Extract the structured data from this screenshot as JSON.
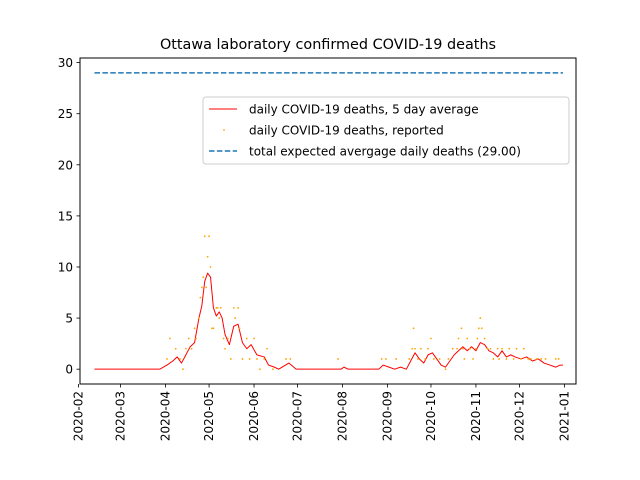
{
  "chart_data": {
    "type": "line",
    "title": "Ottawa laboratory confirmed COVID-19 deaths",
    "xlabel": "",
    "ylabel": "",
    "xlim": [
      "2020-02-02",
      "2021-01-09"
    ],
    "ylim": [
      -1.45,
      30.45
    ],
    "x_ticks": [
      "2020-02",
      "2020-03",
      "2020-04",
      "2020-05",
      "2020-06",
      "2020-07",
      "2020-08",
      "2020-09",
      "2020-10",
      "2020-11",
      "2020-12",
      "2021-01"
    ],
    "y_ticks": [
      0,
      5,
      10,
      15,
      20,
      25,
      30
    ],
    "grid": false,
    "legend_position": "upper-right",
    "series": [
      {
        "name": "daily COVID-19 deaths, 5 day average",
        "style": "line",
        "color": "#ff0000",
        "points": [
          [
            "2020-02-12",
            0
          ],
          [
            "2020-03-28",
            0
          ],
          [
            "2020-04-02",
            0.4
          ],
          [
            "2020-04-06",
            0.8
          ],
          [
            "2020-04-09",
            1.2
          ],
          [
            "2020-04-12",
            0.6
          ],
          [
            "2020-04-15",
            1.4
          ],
          [
            "2020-04-18",
            2.2
          ],
          [
            "2020-04-21",
            2.6
          ],
          [
            "2020-04-24",
            5.0
          ],
          [
            "2020-04-26",
            6.2
          ],
          [
            "2020-04-28",
            8.6
          ],
          [
            "2020-04-30",
            9.4
          ],
          [
            "2020-05-02",
            9.0
          ],
          [
            "2020-05-04",
            6.0
          ],
          [
            "2020-05-06",
            5.2
          ],
          [
            "2020-05-08",
            5.6
          ],
          [
            "2020-05-10",
            5.0
          ],
          [
            "2020-05-12",
            3.4
          ],
          [
            "2020-05-15",
            2.4
          ],
          [
            "2020-05-18",
            4.2
          ],
          [
            "2020-05-21",
            4.4
          ],
          [
            "2020-05-24",
            2.6
          ],
          [
            "2020-05-27",
            2.0
          ],
          [
            "2020-05-30",
            2.4
          ],
          [
            "2020-06-03",
            1.4
          ],
          [
            "2020-06-08",
            1.2
          ],
          [
            "2020-06-11",
            0.4
          ],
          [
            "2020-06-15",
            0.2
          ],
          [
            "2020-06-18",
            0
          ],
          [
            "2020-06-25",
            0.6
          ],
          [
            "2020-06-30",
            0
          ],
          [
            "2020-07-31",
            0
          ],
          [
            "2020-08-02",
            0.2
          ],
          [
            "2020-08-05",
            0
          ],
          [
            "2020-08-26",
            0
          ],
          [
            "2020-08-29",
            0.4
          ],
          [
            "2020-09-02",
            0.2
          ],
          [
            "2020-09-06",
            0
          ],
          [
            "2020-09-10",
            0.2
          ],
          [
            "2020-09-14",
            0
          ],
          [
            "2020-09-17",
            0.8
          ],
          [
            "2020-09-20",
            1.6
          ],
          [
            "2020-09-23",
            1.0
          ],
          [
            "2020-09-26",
            0.6
          ],
          [
            "2020-09-29",
            1.4
          ],
          [
            "2020-10-02",
            1.6
          ],
          [
            "2020-10-05",
            1.0
          ],
          [
            "2020-10-08",
            0.4
          ],
          [
            "2020-10-11",
            0.2
          ],
          [
            "2020-10-14",
            0.8
          ],
          [
            "2020-10-17",
            1.4
          ],
          [
            "2020-10-20",
            1.8
          ],
          [
            "2020-10-23",
            2.2
          ],
          [
            "2020-10-26",
            1.8
          ],
          [
            "2020-10-29",
            2.2
          ],
          [
            "2020-11-01",
            1.8
          ],
          [
            "2020-11-04",
            2.6
          ],
          [
            "2020-11-07",
            2.4
          ],
          [
            "2020-11-10",
            1.8
          ],
          [
            "2020-11-13",
            1.6
          ],
          [
            "2020-11-16",
            1.2
          ],
          [
            "2020-11-19",
            1.8
          ],
          [
            "2020-11-22",
            1.2
          ],
          [
            "2020-11-25",
            1.4
          ],
          [
            "2020-11-28",
            1.2
          ],
          [
            "2020-12-02",
            1.0
          ],
          [
            "2020-12-06",
            1.2
          ],
          [
            "2020-12-10",
            0.8
          ],
          [
            "2020-12-14",
            1.0
          ],
          [
            "2020-12-18",
            0.6
          ],
          [
            "2020-12-22",
            0.4
          ],
          [
            "2020-12-26",
            0.2
          ],
          [
            "2020-12-29",
            0.4
          ],
          [
            "2020-12-31",
            0.4
          ]
        ]
      },
      {
        "name": "daily COVID-19 deaths, reported",
        "style": "points",
        "color": "#ffa500",
        "points": [
          [
            "2020-04-02",
            1
          ],
          [
            "2020-04-04",
            3
          ],
          [
            "2020-04-08",
            2
          ],
          [
            "2020-04-11",
            1
          ],
          [
            "2020-04-13",
            0
          ],
          [
            "2020-04-15",
            2
          ],
          [
            "2020-04-17",
            3
          ],
          [
            "2020-04-19",
            2
          ],
          [
            "2020-04-21",
            4
          ],
          [
            "2020-04-22",
            3
          ],
          [
            "2020-04-24",
            5
          ],
          [
            "2020-04-25",
            7
          ],
          [
            "2020-04-26",
            8
          ],
          [
            "2020-04-27",
            9
          ],
          [
            "2020-04-28",
            13
          ],
          [
            "2020-04-29",
            8
          ],
          [
            "2020-04-30",
            11
          ],
          [
            "2020-05-01",
            13
          ],
          [
            "2020-05-02",
            10
          ],
          [
            "2020-05-03",
            4
          ],
          [
            "2020-05-04",
            4
          ],
          [
            "2020-05-06",
            6
          ],
          [
            "2020-05-07",
            6
          ],
          [
            "2020-05-08",
            5
          ],
          [
            "2020-05-09",
            6
          ],
          [
            "2020-05-11",
            3
          ],
          [
            "2020-05-12",
            2
          ],
          [
            "2020-05-14",
            3
          ],
          [
            "2020-05-16",
            1
          ],
          [
            "2020-05-18",
            6
          ],
          [
            "2020-05-19",
            5
          ],
          [
            "2020-05-21",
            6
          ],
          [
            "2020-05-22",
            4
          ],
          [
            "2020-05-24",
            1
          ],
          [
            "2020-05-27",
            3
          ],
          [
            "2020-05-29",
            1
          ],
          [
            "2020-06-01",
            3
          ],
          [
            "2020-06-03",
            1
          ],
          [
            "2020-06-05",
            0
          ],
          [
            "2020-06-08",
            1
          ],
          [
            "2020-06-10",
            2
          ],
          [
            "2020-06-14",
            0
          ],
          [
            "2020-06-23",
            1
          ],
          [
            "2020-06-26",
            1
          ],
          [
            "2020-07-29",
            1
          ],
          [
            "2020-08-28",
            1
          ],
          [
            "2020-08-31",
            1
          ],
          [
            "2020-09-07",
            1
          ],
          [
            "2020-09-16",
            1
          ],
          [
            "2020-09-18",
            2
          ],
          [
            "2020-09-19",
            4
          ],
          [
            "2020-09-20",
            2
          ],
          [
            "2020-09-22",
            1
          ],
          [
            "2020-09-24",
            2
          ],
          [
            "2020-09-27",
            1
          ],
          [
            "2020-09-29",
            2
          ],
          [
            "2020-10-01",
            3
          ],
          [
            "2020-10-03",
            1
          ],
          [
            "2020-10-07",
            1
          ],
          [
            "2020-10-11",
            0
          ],
          [
            "2020-10-13",
            1
          ],
          [
            "2020-10-16",
            2
          ],
          [
            "2020-10-19",
            2
          ],
          [
            "2020-10-20",
            3
          ],
          [
            "2020-10-22",
            4
          ],
          [
            "2020-10-23",
            2
          ],
          [
            "2020-10-24",
            1
          ],
          [
            "2020-10-26",
            3
          ],
          [
            "2020-10-28",
            2
          ],
          [
            "2020-10-30",
            1
          ],
          [
            "2020-11-01",
            2
          ],
          [
            "2020-11-02",
            3
          ],
          [
            "2020-11-03",
            4
          ],
          [
            "2020-11-04",
            5
          ],
          [
            "2020-11-05",
            4
          ],
          [
            "2020-11-07",
            3
          ],
          [
            "2020-11-09",
            2
          ],
          [
            "2020-11-11",
            2
          ],
          [
            "2020-11-13",
            1
          ],
          [
            "2020-11-16",
            2
          ],
          [
            "2020-11-17",
            1
          ],
          [
            "2020-11-19",
            2
          ],
          [
            "2020-11-22",
            1
          ],
          [
            "2020-11-24",
            2
          ],
          [
            "2020-11-27",
            1
          ],
          [
            "2020-11-29",
            2
          ],
          [
            "2020-12-02",
            1
          ],
          [
            "2020-12-04",
            2
          ],
          [
            "2020-12-07",
            1
          ],
          [
            "2020-12-09",
            1
          ],
          [
            "2020-12-13",
            1
          ],
          [
            "2020-12-16",
            1
          ],
          [
            "2020-12-19",
            1
          ],
          [
            "2020-12-26",
            1
          ],
          [
            "2020-12-28",
            1
          ]
        ]
      },
      {
        "name": "total expected avergage daily deaths (29.00)",
        "style": "dashed",
        "color": "#1f77b4",
        "points": [
          [
            "2020-02-12",
            29.0
          ],
          [
            "2020-12-31",
            29.0
          ]
        ]
      }
    ]
  }
}
